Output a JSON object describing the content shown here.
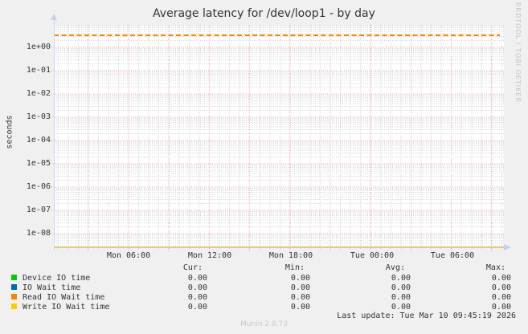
{
  "title": "Average latency for /dev/loop1 - by day",
  "watermark": "RRDTOOL / TOBI OETIKER",
  "footer_version": "Munin 2.0.73",
  "last_update": "Last update: Tue Mar 10 09:45:19 2026",
  "y_axis": {
    "label": "seconds",
    "ticks": [
      "1e+00",
      "1e-01",
      "1e-02",
      "1e-03",
      "1e-04",
      "1e-05",
      "1e-06",
      "1e-07",
      "1e-08"
    ]
  },
  "x_axis": {
    "ticks": [
      "Mon 06:00",
      "Mon 12:00",
      "Mon 18:00",
      "Tue 00:00",
      "Tue 06:00"
    ]
  },
  "legend": {
    "headers": {
      "cur": "Cur:",
      "min": "Min:",
      "avg": "Avg:",
      "max": "Max:"
    },
    "rows": [
      {
        "label": "Device IO time",
        "color": "#00cc00",
        "cur": "0.00",
        "min": "0.00",
        "avg": "0.00",
        "max": "0.00"
      },
      {
        "label": "IO Wait time",
        "color": "#0066b3",
        "cur": "0.00",
        "min": "0.00",
        "avg": "0.00",
        "max": "0.00"
      },
      {
        "label": "Read IO Wait time",
        "color": "#ff8000",
        "cur": "0.00",
        "min": "0.00",
        "avg": "0.00",
        "max": "0.00"
      },
      {
        "label": "Write IO Wait time",
        "color": "#ffcc00",
        "cur": "0.00",
        "min": "0.00",
        "avg": "0.00",
        "max": "0.00"
      }
    ]
  },
  "chart_data": {
    "type": "line",
    "title": "Average latency for /dev/loop1 - by day",
    "xlabel": "",
    "ylabel": "seconds",
    "y_scale": "log",
    "ylim": [
      3e-09,
      6
    ],
    "y_ticks": [
      "1e+00",
      "1e-01",
      "1e-02",
      "1e-03",
      "1e-04",
      "1e-05",
      "1e-06",
      "1e-07",
      "1e-08"
    ],
    "x_ticks": [
      "Mon 06:00",
      "Mon 12:00",
      "Mon 18:00",
      "Tue 00:00",
      "Tue 06:00"
    ],
    "grid": true,
    "legend_position": "bottom",
    "series": [
      {
        "name": "Device IO time",
        "color": "#00cc00",
        "values": [
          0,
          0,
          0,
          0,
          0,
          0
        ],
        "stats": {
          "cur": 0.0,
          "min": 0.0,
          "avg": 0.0,
          "max": 0.0
        }
      },
      {
        "name": "IO Wait time",
        "color": "#0066b3",
        "values": [
          0,
          0,
          0,
          0,
          0,
          0
        ],
        "stats": {
          "cur": 0.0,
          "min": 0.0,
          "avg": 0.0,
          "max": 0.0
        }
      },
      {
        "name": "Read IO Wait time",
        "color": "#ff8000",
        "values": [
          0,
          0,
          0,
          0,
          0,
          0
        ],
        "stats": {
          "cur": 0.0,
          "min": 0.0,
          "avg": 0.0,
          "max": 0.0
        }
      },
      {
        "name": "Write IO Wait time",
        "color": "#ffcc00",
        "values": [
          0,
          0,
          0,
          0,
          0,
          0
        ],
        "stats": {
          "cur": 0.0,
          "min": 0.0,
          "avg": 0.0,
          "max": 0.0
        }
      }
    ],
    "threshold_line": {
      "value": 3,
      "style": "dashed",
      "color": "#ff8000"
    }
  }
}
